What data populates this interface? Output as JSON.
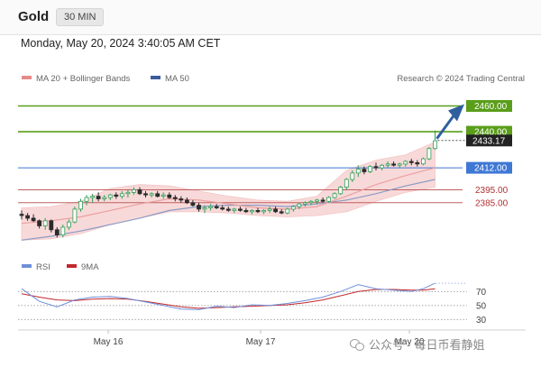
{
  "instrument": "Gold",
  "timeframe": "30 MIN",
  "timestamp": "Monday, May 20, 2024 3:40:05 AM CET",
  "legend": [
    {
      "name": "MA 20 + Bollinger Bands",
      "color": "#e88a8a"
    },
    {
      "name": "MA 50",
      "color": "#3b5b9c"
    }
  ],
  "credit": "Research © 2024 Trading Central",
  "rsi_legend": [
    {
      "name": "RSI",
      "color": "#6f8fd8"
    },
    {
      "name": "9MA",
      "color": "#c0282d"
    }
  ],
  "watermark": "公众号 · 每日币看静姐",
  "chart_data": {
    "type": "candlestick",
    "price_levels": [
      {
        "label": "2460.00",
        "value": 2460,
        "color": "#5a9e1a"
      },
      {
        "label": "2440.00",
        "value": 2440,
        "color": "#5a9e1a"
      },
      {
        "label": "2412.00",
        "value": 2412,
        "color": "#3f78d4"
      },
      {
        "label": "2395.00",
        "value": 2395,
        "color": "#c06060"
      },
      {
        "label": "2385.00",
        "value": 2385,
        "color": "#c06060"
      }
    ],
    "last_price": {
      "label": "2433.17",
      "value": 2433.17
    },
    "ylim": [
      2345,
      2475
    ],
    "x_labels": [
      "May 16",
      "May 17",
      "May 20"
    ],
    "candles": [
      [
        2376,
        2379,
        2372,
        2375
      ],
      [
        2375,
        2377,
        2371,
        2373
      ],
      [
        2373,
        2376,
        2370,
        2371
      ],
      [
        2371,
        2372,
        2365,
        2367
      ],
      [
        2367,
        2373,
        2364,
        2371
      ],
      [
        2371,
        2372,
        2362,
        2364
      ],
      [
        2364,
        2366,
        2358,
        2360
      ],
      [
        2360,
        2368,
        2358,
        2366
      ],
      [
        2366,
        2372,
        2364,
        2370
      ],
      [
        2370,
        2382,
        2369,
        2380
      ],
      [
        2380,
        2388,
        2378,
        2386
      ],
      [
        2386,
        2391,
        2383,
        2389
      ],
      [
        2389,
        2392,
        2385,
        2390
      ],
      [
        2390,
        2393,
        2386,
        2388
      ],
      [
        2388,
        2391,
        2386,
        2389
      ],
      [
        2389,
        2392,
        2387,
        2391
      ],
      [
        2391,
        2393,
        2388,
        2390
      ],
      [
        2390,
        2394,
        2388,
        2392
      ],
      [
        2392,
        2395,
        2389,
        2393
      ],
      [
        2393,
        2397,
        2391,
        2395
      ],
      [
        2395,
        2397,
        2391,
        2392
      ],
      [
        2392,
        2394,
        2389,
        2391
      ],
      [
        2391,
        2393,
        2389,
        2392
      ],
      [
        2392,
        2394,
        2389,
        2390
      ],
      [
        2390,
        2393,
        2388,
        2391
      ],
      [
        2391,
        2393,
        2388,
        2389
      ],
      [
        2389,
        2391,
        2386,
        2388
      ],
      [
        2388,
        2390,
        2385,
        2387
      ],
      [
        2387,
        2389,
        2384,
        2385
      ],
      [
        2385,
        2387,
        2382,
        2383
      ],
      [
        2383,
        2385,
        2378,
        2380
      ],
      [
        2380,
        2383,
        2377,
        2381
      ],
      [
        2381,
        2384,
        2379,
        2382
      ],
      [
        2382,
        2384,
        2380,
        2381
      ],
      [
        2381,
        2383,
        2379,
        2380
      ],
      [
        2380,
        2382,
        2378,
        2379
      ],
      [
        2379,
        2381,
        2377,
        2380
      ],
      [
        2380,
        2382,
        2378,
        2379
      ],
      [
        2379,
        2381,
        2377,
        2378
      ],
      [
        2378,
        2380,
        2376,
        2379
      ],
      [
        2379,
        2381,
        2377,
        2378
      ],
      [
        2378,
        2380,
        2376,
        2379
      ],
      [
        2379,
        2382,
        2377,
        2380
      ],
      [
        2380,
        2382,
        2377,
        2378
      ],
      [
        2378,
        2380,
        2376,
        2377
      ],
      [
        2377,
        2381,
        2376,
        2380
      ],
      [
        2380,
        2383,
        2378,
        2382
      ],
      [
        2382,
        2385,
        2380,
        2384
      ],
      [
        2384,
        2386,
        2382,
        2385
      ],
      [
        2385,
        2387,
        2383,
        2386
      ],
      [
        2386,
        2388,
        2384,
        2387
      ],
      [
        2387,
        2389,
        2385,
        2386
      ],
      [
        2386,
        2390,
        2385,
        2389
      ],
      [
        2389,
        2393,
        2388,
        2392
      ],
      [
        2392,
        2398,
        2391,
        2397
      ],
      [
        2397,
        2404,
        2395,
        2403
      ],
      [
        2403,
        2410,
        2401,
        2408
      ],
      [
        2408,
        2414,
        2405,
        2411
      ],
      [
        2411,
        2413,
        2407,
        2409
      ],
      [
        2409,
        2414,
        2408,
        2413
      ],
      [
        2413,
        2416,
        2410,
        2412
      ],
      [
        2412,
        2415,
        2410,
        2414
      ],
      [
        2414,
        2417,
        2412,
        2415
      ],
      [
        2415,
        2417,
        2413,
        2414
      ],
      [
        2414,
        2416,
        2412,
        2415
      ],
      [
        2415,
        2418,
        2413,
        2417
      ],
      [
        2417,
        2419,
        2414,
        2416
      ],
      [
        2416,
        2418,
        2413,
        2415
      ],
      [
        2415,
        2420,
        2414,
        2419
      ],
      [
        2419,
        2428,
        2418,
        2427
      ],
      [
        2427,
        2441,
        2426,
        2433
      ]
    ],
    "ma20": [
      [
        0,
        2369
      ],
      [
        5,
        2371
      ],
      [
        10,
        2374
      ],
      [
        15,
        2379
      ],
      [
        20,
        2384
      ],
      [
        25,
        2388
      ],
      [
        30,
        2387
      ],
      [
        35,
        2384
      ],
      [
        40,
        2381
      ],
      [
        45,
        2380
      ],
      [
        50,
        2382
      ],
      [
        55,
        2390
      ],
      [
        60,
        2399
      ],
      [
        65,
        2406
      ],
      [
        70,
        2412
      ]
    ],
    "ma50": [
      [
        0,
        2356
      ],
      [
        5,
        2359
      ],
      [
        10,
        2363
      ],
      [
        15,
        2368
      ],
      [
        20,
        2373
      ],
      [
        25,
        2379
      ],
      [
        30,
        2382
      ],
      [
        35,
        2383
      ],
      [
        40,
        2383
      ],
      [
        45,
        2382
      ],
      [
        50,
        2384
      ],
      [
        55,
        2387
      ],
      [
        60,
        2392
      ],
      [
        65,
        2398
      ],
      [
        70,
        2403
      ]
    ],
    "bb_upper": [
      [
        0,
        2381
      ],
      [
        5,
        2382
      ],
      [
        10,
        2386
      ],
      [
        15,
        2396
      ],
      [
        20,
        2399
      ],
      [
        25,
        2398
      ],
      [
        30,
        2394
      ],
      [
        35,
        2390
      ],
      [
        40,
        2387
      ],
      [
        45,
        2386
      ],
      [
        50,
        2390
      ],
      [
        55,
        2410
      ],
      [
        60,
        2418
      ],
      [
        65,
        2422
      ],
      [
        70,
        2432
      ]
    ],
    "bb_lower": [
      [
        0,
        2356
      ],
      [
        5,
        2357
      ],
      [
        10,
        2361
      ],
      [
        15,
        2368
      ],
      [
        20,
        2373
      ],
      [
        25,
        2378
      ],
      [
        30,
        2378
      ],
      [
        35,
        2377
      ],
      [
        40,
        2375
      ],
      [
        45,
        2374
      ],
      [
        50,
        2375
      ],
      [
        55,
        2378
      ],
      [
        60,
        2386
      ],
      [
        65,
        2393
      ],
      [
        70,
        2397
      ]
    ],
    "rsi": {
      "ylim": [
        20,
        95
      ],
      "levels": [
        70,
        50,
        30
      ],
      "rsi": [
        [
          0,
          74
        ],
        [
          3,
          56
        ],
        [
          6,
          48
        ],
        [
          9,
          58
        ],
        [
          12,
          62
        ],
        [
          15,
          63
        ],
        [
          18,
          60
        ],
        [
          21,
          55
        ],
        [
          24,
          50
        ],
        [
          27,
          45
        ],
        [
          30,
          44
        ],
        [
          33,
          49
        ],
        [
          36,
          47
        ],
        [
          39,
          51
        ],
        [
          42,
          50
        ],
        [
          45,
          53
        ],
        [
          48,
          57
        ],
        [
          51,
          62
        ],
        [
          54,
          70
        ],
        [
          57,
          80
        ],
        [
          60,
          74
        ],
        [
          63,
          72
        ],
        [
          66,
          70
        ],
        [
          68,
          74
        ],
        [
          70,
          82
        ]
      ],
      "ma": [
        [
          0,
          67
        ],
        [
          3,
          62
        ],
        [
          6,
          58
        ],
        [
          9,
          57
        ],
        [
          12,
          59
        ],
        [
          15,
          60
        ],
        [
          18,
          59
        ],
        [
          21,
          56
        ],
        [
          24,
          52
        ],
        [
          27,
          48
        ],
        [
          30,
          46
        ],
        [
          33,
          47
        ],
        [
          36,
          48
        ],
        [
          39,
          49
        ],
        [
          42,
          50
        ],
        [
          45,
          51
        ],
        [
          48,
          54
        ],
        [
          51,
          58
        ],
        [
          54,
          64
        ],
        [
          57,
          70
        ],
        [
          60,
          73
        ],
        [
          63,
          73
        ],
        [
          66,
          72
        ],
        [
          68,
          72
        ],
        [
          70,
          74
        ]
      ]
    }
  }
}
